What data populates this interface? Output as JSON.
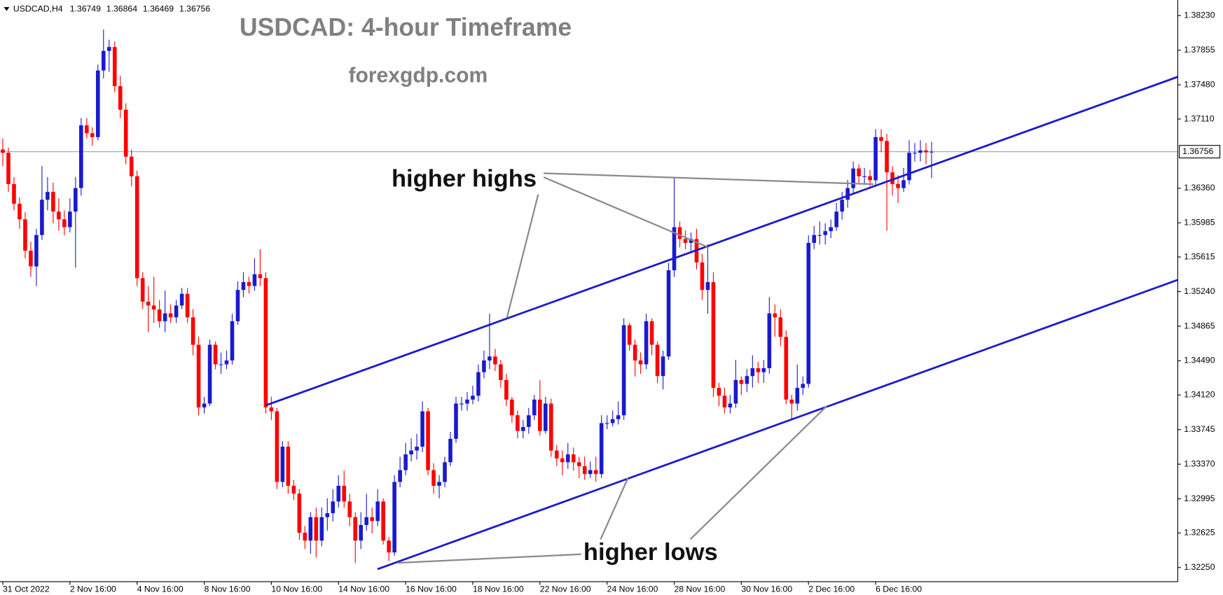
{
  "chart_data": {
    "type": "candlestick",
    "symbol": "USDCAD,H4",
    "title": "USDCAD: 4-hour Timeframe",
    "subtitle": "forexgdp.com",
    "annotations": [
      "higher highs",
      "higher lows"
    ],
    "up_color": "#1a1acd",
    "down_color": "#ff0000",
    "last_price": 1.36756,
    "ylim": [
      1.32097,
      1.38357
    ],
    "xlim": [
      -0.5,
      210
    ],
    "yticks": [
      {
        "value": 1.3823,
        "label": "1.38230"
      },
      1.37855,
      {
        "value": 1.3748,
        "label": "1.37480"
      },
      {
        "value": 1.3711,
        "label": "1.37110"
      },
      {
        "value": 1.3636,
        "label": "1.36360"
      },
      1.35985,
      1.35615,
      {
        "value": 1.3524,
        "label": "1.35240"
      },
      1.34865,
      {
        "value": 1.3449,
        "label": "1.34490"
      },
      {
        "value": 1.3412,
        "label": "1.34120"
      },
      1.33745,
      {
        "value": 1.3337,
        "label": "1.33370"
      },
      1.32995,
      1.32625,
      {
        "value": 1.3225,
        "label": "1.32250"
      }
    ],
    "categories": [
      "31 Oct 2022",
      null,
      null,
      null,
      null,
      null,
      null,
      null,
      null,
      null,
      null,
      null,
      "2 Nov 16:00",
      null,
      null,
      null,
      null,
      null,
      null,
      null,
      null,
      null,
      null,
      null,
      "4 Nov 16:00",
      null,
      null,
      null,
      null,
      null,
      null,
      null,
      null,
      null,
      null,
      null,
      "8 Nov 16:00",
      null,
      null,
      null,
      null,
      null,
      null,
      null,
      null,
      null,
      null,
      null,
      "10 Nov 16:00",
      null,
      null,
      null,
      null,
      null,
      null,
      null,
      null,
      null,
      null,
      null,
      "14 Nov 16:00",
      null,
      null,
      null,
      null,
      null,
      null,
      null,
      null,
      null,
      null,
      null,
      "16 Nov 16:00",
      null,
      null,
      null,
      null,
      null,
      null,
      null,
      null,
      null,
      null,
      null,
      "18 Nov 16:00",
      null,
      null,
      null,
      null,
      null,
      null,
      null,
      null,
      null,
      null,
      null,
      "22 Nov 16:00",
      null,
      null,
      null,
      null,
      null,
      null,
      null,
      null,
      null,
      null,
      null,
      "24 Nov 16:00",
      null,
      null,
      null,
      null,
      null,
      null,
      null,
      null,
      null,
      null,
      null,
      "28 Nov 16:00",
      null,
      null,
      null,
      null,
      null,
      null,
      null,
      null,
      null,
      null,
      null,
      "30 Nov 16:00",
      null,
      null,
      null,
      null,
      null,
      null,
      null,
      null,
      null,
      null,
      null,
      "2 Dec 16:00",
      null,
      null,
      null,
      null,
      null,
      null,
      null,
      null,
      null,
      null,
      null,
      "6 Dec 16:00",
      null,
      null,
      null,
      null,
      null,
      null,
      null,
      null,
      null,
      null
    ],
    "ohlc": [
      [
        1.3678,
        1.369,
        1.366,
        1.36744
      ],
      [
        1.36744,
        1.368,
        1.3632,
        1.36405
      ],
      [
        1.36405,
        1.3648,
        1.3612,
        1.36192
      ],
      [
        1.36192,
        1.3626,
        1.3592,
        1.36023
      ],
      [
        1.36023,
        1.361,
        1.356,
        1.35683
      ],
      [
        1.35683,
        1.3578,
        1.354,
        1.35513
      ],
      [
        1.35513,
        1.3592,
        1.353,
        1.35853
      ],
      [
        1.35853,
        1.366,
        1.358,
        1.36235
      ],
      [
        1.36235,
        1.3648,
        1.3612,
        1.3632
      ],
      [
        1.3632,
        1.3642,
        1.3598,
        1.36107
      ],
      [
        1.36107,
        1.3625,
        1.359,
        1.36023
      ],
      [
        1.36023,
        1.3612,
        1.3585,
        1.35938
      ],
      [
        1.35938,
        1.3625,
        1.3588,
        1.36107
      ],
      [
        1.36107,
        1.3648,
        1.355,
        1.36362
      ],
      [
        1.36362,
        1.3712,
        1.3628,
        1.37041
      ],
      [
        1.37041,
        1.3712,
        1.369,
        1.36956
      ],
      [
        1.36956,
        1.3702,
        1.3682,
        1.36914
      ],
      [
        1.36914,
        1.377,
        1.3688,
        1.37636
      ],
      [
        1.37636,
        1.3808,
        1.3755,
        1.37848
      ],
      [
        1.37848,
        1.3797,
        1.3762,
        1.3789
      ],
      [
        1.3789,
        1.3795,
        1.374,
        1.37466
      ],
      [
        1.37466,
        1.3758,
        1.3712,
        1.37211
      ],
      [
        1.37211,
        1.3728,
        1.3662,
        1.36702
      ],
      [
        1.36702,
        1.3678,
        1.3638,
        1.3649
      ],
      [
        1.3649,
        1.3655,
        1.353,
        1.35386
      ],
      [
        1.35386,
        1.3545,
        1.3505,
        1.35131
      ],
      [
        1.35131,
        1.353,
        1.348,
        1.35089
      ],
      [
        1.35089,
        1.354,
        1.349,
        1.35046
      ],
      [
        1.35046,
        1.3515,
        1.3485,
        1.34919
      ],
      [
        1.34919,
        1.3525,
        1.348,
        1.35004
      ],
      [
        1.35004,
        1.351,
        1.349,
        1.34961
      ],
      [
        1.34961,
        1.3515,
        1.349,
        1.35089
      ],
      [
        1.35089,
        1.3528,
        1.3505,
        1.35216
      ],
      [
        1.35216,
        1.3528,
        1.349,
        1.34961
      ],
      [
        1.34961,
        1.3505,
        1.3455,
        1.34664
      ],
      [
        1.34664,
        1.3475,
        1.339,
        1.33985
      ],
      [
        1.33985,
        1.341,
        1.3392,
        1.34027
      ],
      [
        1.34027,
        1.3472,
        1.34,
        1.34664
      ],
      [
        1.34664,
        1.347,
        1.344,
        1.34452
      ],
      [
        1.34452,
        1.3458,
        1.3435,
        1.34452
      ],
      [
        1.34452,
        1.346,
        1.344,
        1.34494
      ],
      [
        1.34494,
        1.35,
        1.3445,
        1.34919
      ],
      [
        1.34919,
        1.3535,
        1.3488,
        1.35258
      ],
      [
        1.35258,
        1.3545,
        1.3518,
        1.35343
      ],
      [
        1.35343,
        1.354,
        1.3522,
        1.35301
      ],
      [
        1.35301,
        1.356,
        1.3525,
        1.35428
      ],
      [
        1.35428,
        1.357,
        1.353,
        1.35386
      ],
      [
        1.35386,
        1.3545,
        1.3392,
        1.33985
      ],
      [
        1.33985,
        1.341,
        1.3385,
        1.33943
      ],
      [
        1.33943,
        1.3398,
        1.331,
        1.33178
      ],
      [
        1.33178,
        1.3362,
        1.3312,
        1.3356
      ],
      [
        1.3356,
        1.3362,
        1.3305,
        1.33136
      ],
      [
        1.33136,
        1.332,
        1.3298,
        1.33051
      ],
      [
        1.33051,
        1.331,
        1.3255,
        1.32627
      ],
      [
        1.32627,
        1.327,
        1.3245,
        1.32542
      ],
      [
        1.32542,
        1.3285,
        1.324,
        1.32796
      ],
      [
        1.32796,
        1.329,
        1.3236,
        1.32542
      ],
      [
        1.32542,
        1.329,
        1.3248,
        1.32796
      ],
      [
        1.32796,
        1.33,
        1.3265,
        1.32839
      ],
      [
        1.32839,
        1.331,
        1.3275,
        1.32966
      ],
      [
        1.32966,
        1.3325,
        1.329,
        1.33136
      ],
      [
        1.33136,
        1.333,
        1.329,
        1.32966
      ],
      [
        1.32966,
        1.3305,
        1.327,
        1.32796
      ],
      [
        1.32796,
        1.3285,
        1.323,
        1.32542
      ],
      [
        1.32542,
        1.3285,
        1.3245,
        1.32711
      ],
      [
        1.32711,
        1.3305,
        1.3265,
        1.32796
      ],
      [
        1.32796,
        1.329,
        1.3262,
        1.32754
      ],
      [
        1.32754,
        1.331,
        1.327,
        1.32966
      ],
      [
        1.32966,
        1.33,
        1.325,
        1.32542
      ],
      [
        1.32542,
        1.3258,
        1.3232,
        1.32414
      ],
      [
        1.32414,
        1.3325,
        1.3238,
        1.33178
      ],
      [
        1.33178,
        1.3345,
        1.3312,
        1.33306
      ],
      [
        1.33306,
        1.336,
        1.3325,
        1.33476
      ],
      [
        1.33476,
        1.3365,
        1.334,
        1.33518
      ],
      [
        1.33518,
        1.337,
        1.3342,
        1.3356
      ],
      [
        1.3356,
        1.3405,
        1.335,
        1.33943
      ],
      [
        1.33943,
        1.3398,
        1.3325,
        1.33306
      ],
      [
        1.33306,
        1.3338,
        1.3305,
        1.33136
      ],
      [
        1.33136,
        1.3325,
        1.33,
        1.33178
      ],
      [
        1.33178,
        1.3345,
        1.3312,
        1.33391
      ],
      [
        1.33391,
        1.3372,
        1.3335,
        1.33645
      ],
      [
        1.33645,
        1.341,
        1.336,
        1.34027
      ],
      [
        1.34027,
        1.341,
        1.3395,
        1.34027
      ],
      [
        1.34027,
        1.3415,
        1.3395,
        1.3407
      ],
      [
        1.3407,
        1.3422,
        1.3402,
        1.34112
      ],
      [
        1.34112,
        1.3445,
        1.3405,
        1.34367
      ],
      [
        1.34367,
        1.346,
        1.343,
        1.34494
      ],
      [
        1.34494,
        1.35,
        1.344,
        1.34537
      ],
      [
        1.34537,
        1.3462,
        1.3438,
        1.34452
      ],
      [
        1.34452,
        1.345,
        1.342,
        1.34282
      ],
      [
        1.34282,
        1.3435,
        1.34,
        1.3407
      ],
      [
        1.3407,
        1.341,
        1.3382,
        1.339
      ],
      [
        1.339,
        1.3395,
        1.3365,
        1.3373
      ],
      [
        1.3373,
        1.3385,
        1.3365,
        1.33773
      ],
      [
        1.33773,
        1.3398,
        1.337,
        1.339
      ],
      [
        1.339,
        1.3412,
        1.3385,
        1.3407
      ],
      [
        1.3407,
        1.3428,
        1.3368,
        1.3373
      ],
      [
        1.3373,
        1.341,
        1.337,
        1.34027
      ],
      [
        1.34027,
        1.3408,
        1.3345,
        1.33518
      ],
      [
        1.33518,
        1.3358,
        1.3335,
        1.33433
      ],
      [
        1.33433,
        1.3352,
        1.3325,
        1.33391
      ],
      [
        1.33391,
        1.336,
        1.3332,
        1.33476
      ],
      [
        1.33476,
        1.3355,
        1.333,
        1.33391
      ],
      [
        1.33391,
        1.3345,
        1.3322,
        1.33348
      ],
      [
        1.33348,
        1.3345,
        1.332,
        1.33263
      ],
      [
        1.33263,
        1.334,
        1.3322,
        1.33306
      ],
      [
        1.33306,
        1.3345,
        1.3318,
        1.33263
      ],
      [
        1.33263,
        1.339,
        1.3322,
        1.33815
      ],
      [
        1.33815,
        1.339,
        1.3375,
        1.33815
      ],
      [
        1.33815,
        1.3395,
        1.3378,
        1.33858
      ],
      [
        1.33858,
        1.3405,
        1.338,
        1.339
      ],
      [
        1.339,
        1.3495,
        1.3385,
        1.34876
      ],
      [
        1.34876,
        1.349,
        1.346,
        1.34664
      ],
      [
        1.34664,
        1.3472,
        1.3432,
        1.34494
      ],
      [
        1.34494,
        1.3458,
        1.3435,
        1.34452
      ],
      [
        1.34452,
        1.35,
        1.344,
        1.34919
      ],
      [
        1.34919,
        1.3495,
        1.3455,
        1.34664
      ],
      [
        1.34664,
        1.347,
        1.3425,
        1.34325
      ],
      [
        1.34325,
        1.346,
        1.3418,
        1.34537
      ],
      [
        1.34537,
        1.3555,
        1.345,
        1.35471
      ],
      [
        1.35471,
        1.3647,
        1.354,
        1.35938
      ],
      [
        1.35938,
        1.36,
        1.3572,
        1.3581
      ],
      [
        1.3581,
        1.359,
        1.357,
        1.35768
      ],
      [
        1.35768,
        1.3588,
        1.3568,
        1.3581
      ],
      [
        1.3581,
        1.3592,
        1.3548,
        1.35556
      ],
      [
        1.35556,
        1.3565,
        1.3515,
        1.35258
      ],
      [
        1.35258,
        1.3575,
        1.35,
        1.35343
      ],
      [
        1.35343,
        1.3545,
        1.341,
        1.34197
      ],
      [
        1.34197,
        1.3425,
        1.34,
        1.34112
      ],
      [
        1.34112,
        1.342,
        1.3392,
        1.33985
      ],
      [
        1.33985,
        1.3412,
        1.3392,
        1.34027
      ],
      [
        1.34027,
        1.345,
        1.3398,
        1.34282
      ],
      [
        1.34282,
        1.3432,
        1.3412,
        1.3424
      ],
      [
        1.3424,
        1.344,
        1.3415,
        1.34325
      ],
      [
        1.34325,
        1.3455,
        1.342,
        1.3441
      ],
      [
        1.3441,
        1.3448,
        1.3425,
        1.34367
      ],
      [
        1.34367,
        1.345,
        1.3425,
        1.3441
      ],
      [
        1.3441,
        1.3518,
        1.3435,
        1.35004
      ],
      [
        1.35004,
        1.351,
        1.3475,
        1.34961
      ],
      [
        1.34961,
        1.3505,
        1.3465,
        1.34749
      ],
      [
        1.34749,
        1.3482,
        1.3402,
        1.3407
      ],
      [
        1.3407,
        1.3412,
        1.3385,
        1.34027
      ],
      [
        1.34027,
        1.3445,
        1.3395,
        1.34197
      ],
      [
        1.34197,
        1.3432,
        1.3412,
        1.3424
      ],
      [
        1.3424,
        1.3585,
        1.342,
        1.35768
      ],
      [
        1.35768,
        1.3595,
        1.357,
        1.35853
      ],
      [
        1.35853,
        1.36,
        1.3575,
        1.35853
      ],
      [
        1.35853,
        1.3598,
        1.3575,
        1.35895
      ],
      [
        1.35895,
        1.3602,
        1.3582,
        1.35938
      ],
      [
        1.35938,
        1.362,
        1.359,
        1.36107
      ],
      [
        1.36107,
        1.3632,
        1.3602,
        1.36235
      ],
      [
        1.36235,
        1.3645,
        1.3615,
        1.36362
      ],
      [
        1.36362,
        1.3665,
        1.363,
        1.36574
      ],
      [
        1.36574,
        1.3662,
        1.3642,
        1.3649
      ],
      [
        1.3649,
        1.3658,
        1.364,
        1.3649
      ],
      [
        1.3649,
        1.3656,
        1.3638,
        1.36447
      ],
      [
        1.36447,
        1.37,
        1.364,
        1.36914
      ],
      [
        1.36914,
        1.37,
        1.3675,
        1.36872
      ],
      [
        1.36872,
        1.3695,
        1.359,
        1.36532
      ],
      [
        1.36532,
        1.366,
        1.3628,
        1.36405
      ],
      [
        1.36405,
        1.365,
        1.362,
        1.36362
      ],
      [
        1.36362,
        1.3658,
        1.3632,
        1.36447
      ],
      [
        1.36447,
        1.3688,
        1.364,
        1.36744
      ],
      [
        1.36744,
        1.3685,
        1.3665,
        1.36744
      ],
      [
        1.36744,
        1.3688,
        1.3665,
        1.3677
      ],
      [
        1.3677,
        1.3685,
        1.3662,
        1.36749
      ],
      [
        1.36749,
        1.36864,
        1.36469,
        1.36756
      ]
    ]
  }
}
